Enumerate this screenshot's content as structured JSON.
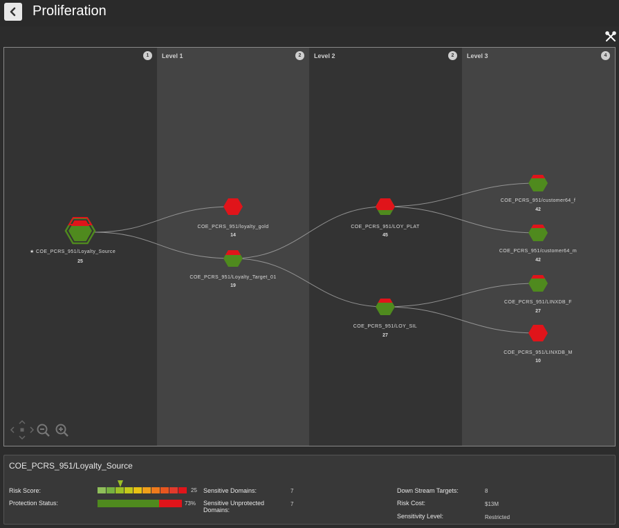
{
  "header": {
    "title": "Proliferation"
  },
  "levels": [
    {
      "label": "",
      "count": "1"
    },
    {
      "label": "Level 1",
      "count": "2"
    },
    {
      "label": "Level 2",
      "count": "2"
    },
    {
      "label": "Level 3",
      "count": "4"
    }
  ],
  "nodes": [
    {
      "id": "source",
      "label": "COE_PCRS_951/Loyalty_Source",
      "count": "25",
      "status": "source"
    },
    {
      "id": "loyalty_gold",
      "label": "COE_PCRS_951/loyalty_gold",
      "count": "14",
      "status": "unprotected"
    },
    {
      "id": "loyalty_target",
      "label": "COE_PCRS_951/Loyalty_Target_01",
      "count": "19",
      "status": "partial"
    },
    {
      "id": "loy_plat",
      "label": "COE_PCRS_951/LOY_PLAT",
      "count": "45",
      "status": "partial-high"
    },
    {
      "id": "loy_sil",
      "label": "COE_PCRS_951/LOY_SIL",
      "count": "27",
      "status": "partial"
    },
    {
      "id": "customer64_f",
      "label": "COE_PCRS_951/customer64_f",
      "count": "42",
      "status": "partial"
    },
    {
      "id": "customer64_m",
      "label": "COE_PCRS_951/customer64_m",
      "count": "42",
      "status": "partial"
    },
    {
      "id": "linxdb_f",
      "label": "COE_PCRS_951/LINXDB_F",
      "count": "27",
      "status": "partial"
    },
    {
      "id": "linxdb_m",
      "label": "COE_PCRS_951/LINXDB_M",
      "count": "10",
      "status": "unprotected"
    }
  ],
  "details": {
    "title": "COE_PCRS_951/Loyalty_Source",
    "risk_score_label": "Risk Score:",
    "risk_score_value": "25",
    "protection_label": "Protection Status:",
    "protection_value": "73%",
    "protection_fraction": 0.73,
    "sensitive_domains_label": "Sensitive Domains:",
    "sensitive_domains_value": "7",
    "sensitive_unprotected_label": "Sensitive Unprotected Domains:",
    "sensitive_unprotected_value": "7",
    "downstream_label": "Down Stream Targets:",
    "downstream_value": "8",
    "risk_cost_label": "Risk Cost:",
    "risk_cost_value": "$13M",
    "sensitivity_label": "Sensitivity Level:",
    "sensitivity_value": "Restricted"
  },
  "colors": {
    "protected": "#4f8a1e",
    "unprotected": "#e0141a",
    "risk_scale": [
      "#8fbf5a",
      "#76b140",
      "#9cbf26",
      "#c4c81a",
      "#e8c213",
      "#f0a01a",
      "#ee7a1c",
      "#e8561f",
      "#e23a2c",
      "#e0141a"
    ]
  }
}
